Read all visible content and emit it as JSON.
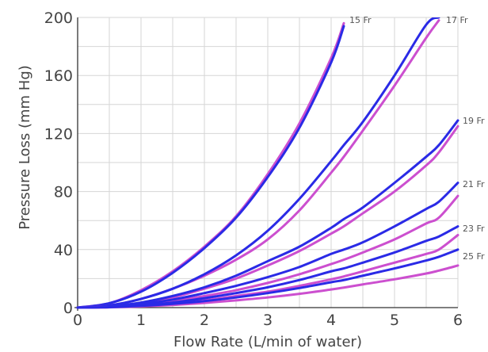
{
  "chart_data": {
    "type": "line",
    "title": "",
    "xlabel": "Flow Rate (L/min of water)",
    "ylabel": "Pressure Loss (mm Hg)",
    "xlim": [
      0,
      6
    ],
    "ylim": [
      0,
      200
    ],
    "x_ticks": [
      "0",
      "1",
      "2",
      "3",
      "4",
      "5",
      "6"
    ],
    "y_ticks": [
      "0",
      "40",
      "80",
      "120",
      "160",
      "200"
    ],
    "grid": true,
    "legend": "none",
    "colors": {
      "blue": "#2a2ae6",
      "magenta": "#cc4fcf",
      "grid": "#d6d6d6"
    },
    "x": [
      0,
      0.5,
      1,
      1.5,
      2,
      2.5,
      3,
      3.5,
      4,
      4.2,
      4.5,
      5,
      5.5,
      5.7,
      6
    ],
    "series": [
      {
        "name": "15 Fr",
        "color": "#cc4fcf",
        "values": [
          0,
          3,
          12,
          25,
          42,
          63,
          92,
          127,
          172,
          196,
          null,
          null,
          null,
          null,
          null
        ]
      },
      {
        "name": "15 Fr",
        "color": "#2a2ae6",
        "values": [
          0,
          3,
          11,
          24,
          41,
          62,
          90,
          124,
          169,
          194,
          null,
          null,
          null,
          null,
          null
        ]
      },
      {
        "name": "17 Fr",
        "color": "#cc4fcf",
        "values": [
          0,
          1.5,
          6,
          13,
          22,
          33,
          47,
          67,
          93,
          104,
          122,
          153,
          186,
          198,
          null
        ]
      },
      {
        "name": "17 Fr",
        "color": "#2a2ae6",
        "values": [
          0,
          1.5,
          6,
          13,
          23,
          36,
          53,
          75,
          101,
          112,
          128,
          160,
          195,
          200,
          null
        ]
      },
      {
        "name": "19 Fr",
        "color": "#cc4fcf",
        "values": [
          0,
          0.7,
          3,
          7,
          13,
          20,
          29,
          39,
          51,
          56,
          65,
          80,
          98,
          107,
          125
        ]
      },
      {
        "name": "19 Fr",
        "color": "#2a2ae6",
        "values": [
          0,
          0.8,
          3.5,
          8,
          14,
          22,
          32,
          42,
          55,
          61,
          69,
          86,
          104,
          112,
          129
        ]
      },
      {
        "name": "21 Fr",
        "color": "#cc4fcf",
        "values": [
          0,
          0.5,
          2,
          4.5,
          8,
          12,
          17,
          23,
          30,
          33,
          38,
          47,
          58,
          62,
          77
        ]
      },
      {
        "name": "21 Fr",
        "color": "#2a2ae6",
        "values": [
          0,
          0.6,
          2.5,
          5.5,
          10,
          15,
          21,
          28,
          37,
          40,
          45,
          56,
          68,
          73,
          86
        ]
      },
      {
        "name": "23 Fr",
        "color": "#cc4fcf",
        "values": [
          0,
          0.3,
          1.3,
          3,
          5,
          8,
          11,
          15,
          19.5,
          21.5,
          25,
          31,
          37,
          40,
          50
        ]
      },
      {
        "name": "23 Fr",
        "color": "#2a2ae6",
        "values": [
          0,
          0.4,
          1.6,
          3.5,
          6.5,
          10,
          14,
          19,
          25,
          27,
          31,
          38,
          46,
          49,
          56
        ]
      },
      {
        "name": "25 Fr",
        "color": "#cc4fcf",
        "values": [
          0,
          0.2,
          0.8,
          1.8,
          3.2,
          5,
          7,
          9.5,
          12.5,
          13.8,
          16,
          19.5,
          23.5,
          25.5,
          29
        ]
      },
      {
        "name": "25 Fr",
        "color": "#2a2ae6",
        "values": [
          0,
          0.3,
          1.2,
          2.6,
          4.5,
          7,
          10,
          13.5,
          17.5,
          19,
          22,
          27,
          32.5,
          35,
          40
        ]
      }
    ],
    "series_labels": [
      "15 Fr",
      "17 Fr",
      "19 Fr",
      "21 Fr",
      "23 Fr",
      "25 Fr"
    ]
  }
}
